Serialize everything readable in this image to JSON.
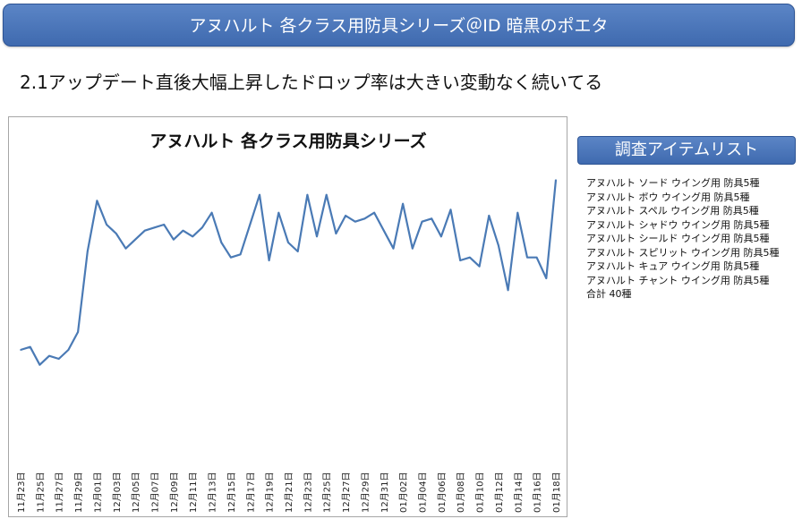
{
  "header": {
    "banner_title": "アヌハルト 各クラス用防具シリーズ＠ID 暗黒のポエタ",
    "subtitle": "2.1アップデート直後大幅上昇したドロップ率は大きい変動なく続いてる"
  },
  "sidebar": {
    "title": "調査アイテムリスト",
    "items": [
      "アヌハルト ソード ウイング用 防具5種",
      "アヌハルト ボウ ウイング用 防具5種",
      "アヌハルト スペル ウイング用 防具5種",
      "アヌハルト シャドウ ウイング用 防具5種",
      "アヌハルト シールド ウイング用 防具5種",
      "アヌハルト スピリット ウイング用 防具5種",
      "アヌハルト キュア ウイング用 防具5種",
      "アヌハルト チャント ウイング用 防具5種",
      "合計 40種"
    ]
  },
  "colors": {
    "accent": "#4472c4",
    "line": "#4a7ab5"
  },
  "chart_data": {
    "type": "line",
    "title": "アヌハルト 各クラス用防具シリーズ",
    "xlabel": "",
    "ylabel": "",
    "grid": false,
    "y_axis_shown": false,
    "tick_labels": [
      "11月23日",
      "11月25日",
      "11月27日",
      "11月29日",
      "12月01日",
      "12月03日",
      "12月05日",
      "12月07日",
      "12月09日",
      "12月11日",
      "12月13日",
      "12月15日",
      "12月17日",
      "12月19日",
      "12月21日",
      "12月23日",
      "12月25日",
      "12月27日",
      "12月29日",
      "12月31日",
      "01月02日",
      "01月04日",
      "01月06日",
      "01月08日",
      "01月10日",
      "01月12日",
      "01月14日",
      "01月16日",
      "01月18日"
    ],
    "series": [
      {
        "values": [
          12,
          13,
          7,
          10,
          9,
          12,
          18,
          45,
          62,
          54,
          51,
          46,
          49,
          52,
          53,
          54,
          49,
          52,
          50,
          53,
          58,
          48,
          43,
          44,
          54,
          64,
          42,
          58,
          48,
          45,
          64,
          50,
          64,
          51,
          57,
          55,
          56,
          58,
          52,
          46,
          61,
          46,
          55,
          56,
          50,
          59,
          42,
          43,
          40,
          57,
          47,
          32,
          58,
          43,
          43,
          36,
          69
        ]
      }
    ]
  }
}
